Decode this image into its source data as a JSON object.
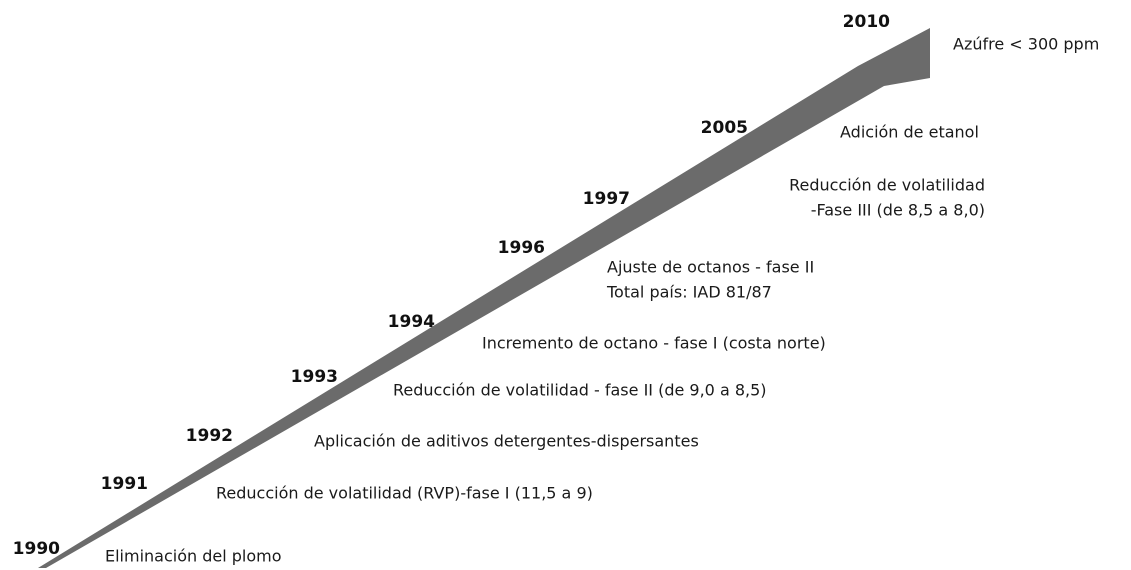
{
  "events": [
    {
      "year": "1990",
      "lines": [
        "Eliminación del plomo"
      ]
    },
    {
      "year": "1991",
      "lines": [
        "Reducción de volatilidad (RVP)-fase I (11,5 a 9)"
      ]
    },
    {
      "year": "1992",
      "lines": [
        "Aplicación de aditivos detergentes-dispersantes"
      ]
    },
    {
      "year": "1993",
      "lines": [
        "Reducción de volatilidad - fase II (de 9,0 a 8,5)"
      ]
    },
    {
      "year": "1994",
      "lines": [
        "Incremento de octano - fase I (costa norte)"
      ]
    },
    {
      "year": "1996",
      "lines": [
        "Ajuste de octanos - fase II",
        "Total país: IAD 81/87"
      ]
    },
    {
      "year": "1997",
      "lines": [
        "Reducción de volatilidad",
        "-Fase III (de 8,5 a 8,0)"
      ]
    },
    {
      "year": "2005",
      "lines": [
        "Adición de etanol"
      ]
    },
    {
      "year": "2010",
      "lines": [
        "Azúfre < 300 ppm"
      ]
    }
  ]
}
